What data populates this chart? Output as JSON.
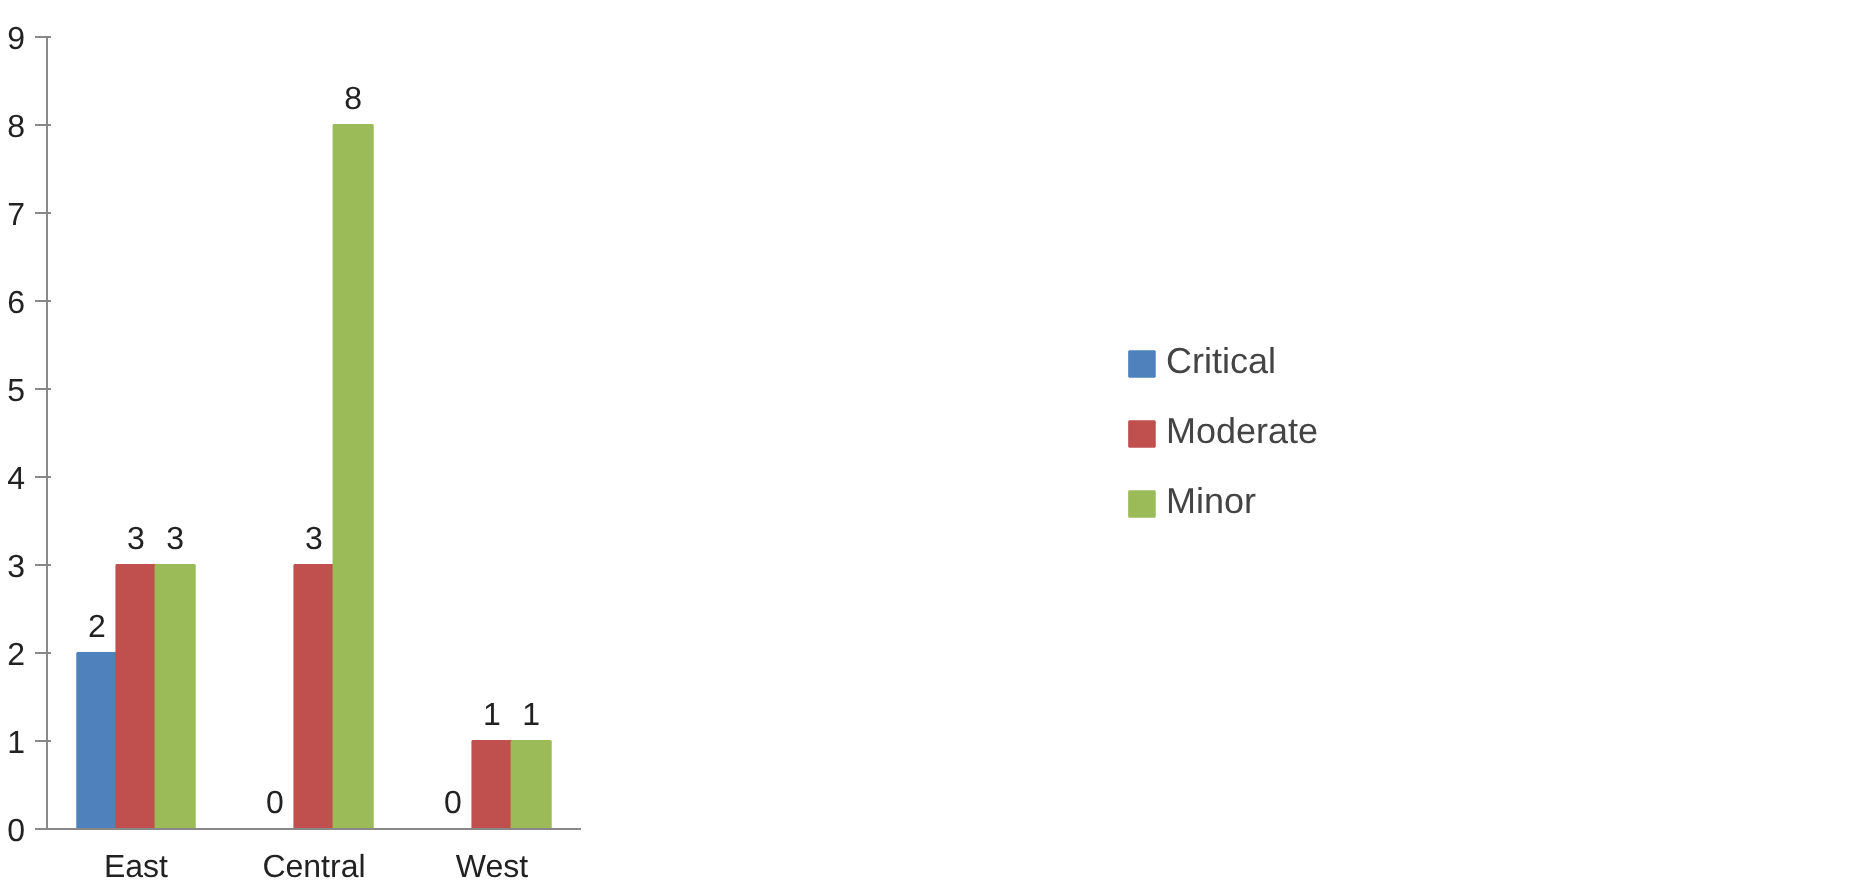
{
  "chart_data": {
    "type": "bar",
    "categories": [
      "East",
      "Central",
      "West"
    ],
    "series": [
      {
        "name": "Critical",
        "color": "#4f81bd",
        "values": [
          2,
          0,
          0
        ]
      },
      {
        "name": "Moderate",
        "color": "#c0504d",
        "values": [
          3,
          3,
          1
        ]
      },
      {
        "name": "Minor",
        "color": "#9bbb59",
        "values": [
          3,
          8,
          1
        ]
      }
    ],
    "ylim": [
      0,
      9
    ],
    "yticks": [
      0,
      1,
      2,
      3,
      4,
      5,
      6,
      7,
      8,
      9
    ],
    "grid": false,
    "legend": "right",
    "data_labels": true
  }
}
